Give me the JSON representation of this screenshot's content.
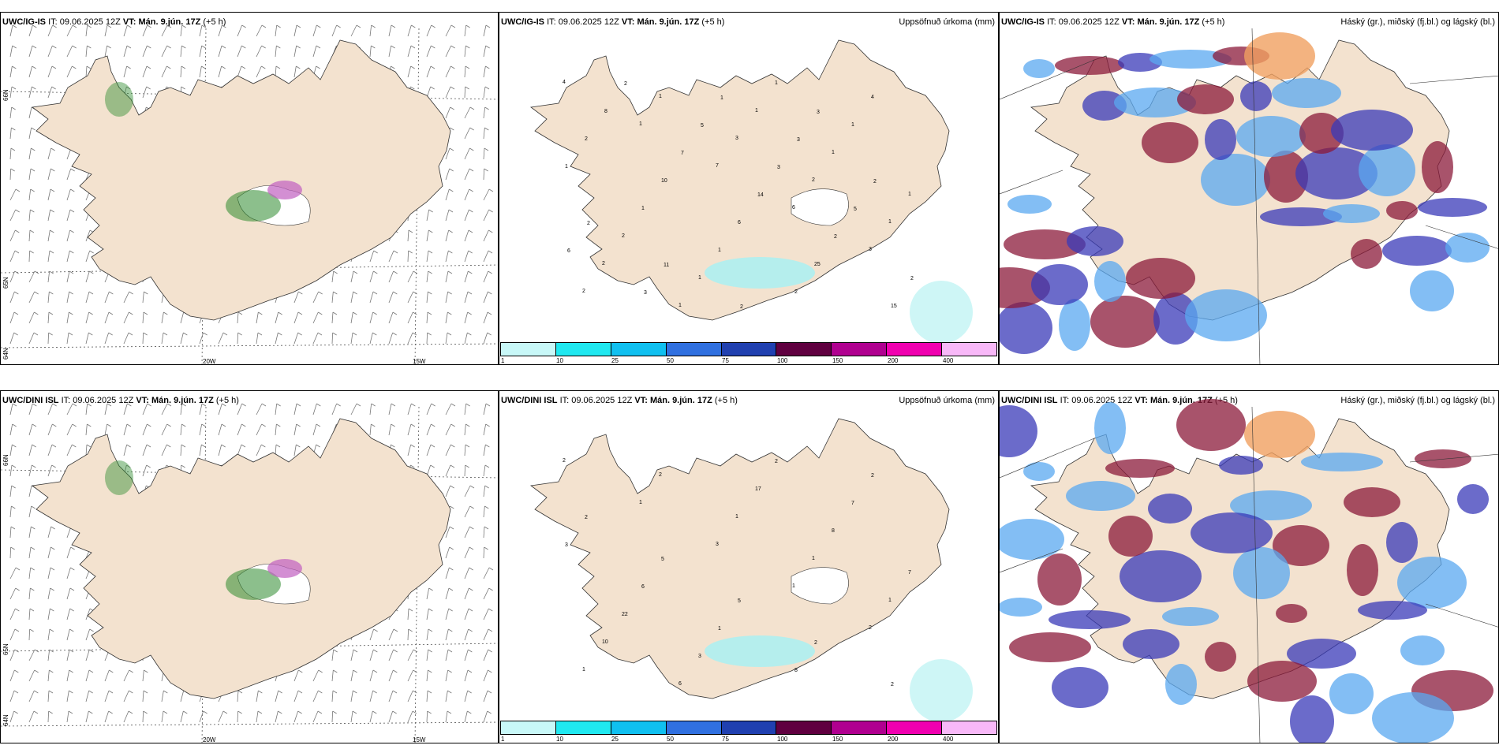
{
  "panels": {
    "ig_wind": {
      "model": "UWC/IG-IS",
      "it_label": "IT:",
      "it": "09.06.2025 12Z",
      "vt_label": "VT:",
      "vt": "Mán. 9.jún. 17Z",
      "lead": "(+5 h)"
    },
    "ig_precip": {
      "model": "UWC/IG-IS",
      "it_label": "IT:",
      "it": "09.06.2025 12Z",
      "vt_label": "VT:",
      "vt": "Mán. 9.jún. 17Z",
      "lead": "(+5 h)",
      "title": "Uppsöfnuð úrkoma (mm)"
    },
    "ig_cloud": {
      "model": "UWC/IG-IS",
      "it_label": "IT:",
      "it": "09.06.2025 12Z",
      "vt_label": "VT:",
      "vt": "Mán. 9.jún. 17Z",
      "lead": "(+5 h)",
      "title": "Háský (gr.), miðský (fj.bl.) og lágský (bl.)"
    },
    "dini_wind": {
      "model": "UWC/DINI ISL",
      "it_label": "IT:",
      "it": "09.06.2025 12Z",
      "vt_label": "VT:",
      "vt": "Mán. 9.jún. 17Z",
      "lead": "(+5 h)"
    },
    "dini_precip": {
      "model": "UWC/DINI ISL",
      "it_label": "IT:",
      "it": "09.06.2025 12Z",
      "vt_label": "VT:",
      "vt": "Mán. 9.jún. 17Z",
      "lead": "(+5 h)",
      "title": "Uppsöfnuð úrkoma (mm)"
    },
    "dini_cloud": {
      "model": "UWC/DINI ISL",
      "it_label": "IT:",
      "it": "09.06.2025 12Z",
      "vt_label": "VT:",
      "vt": "Mán. 9.jún. 17Z",
      "lead": "(+5 h)",
      "title": "Háský (gr.), miðský (fj.bl.) og lágský (bl.)"
    }
  },
  "grid_labels": {
    "lat66": "66N",
    "lat64": "64N",
    "lat65": "65N",
    "lon20": "20W",
    "lon15": "15W"
  },
  "colorbar": {
    "labels": [
      "1",
      "10",
      "25",
      "50",
      "75",
      "100",
      "150",
      "200",
      "400"
    ],
    "colors": [
      "#c8f8f8",
      "#20e8f0",
      "#10c0f0",
      "#3070e0",
      "#2040b0",
      "#600040",
      "#b00090",
      "#f000b0",
      "#f8b8f8"
    ]
  },
  "precip_values_ig": [
    "4",
    "1",
    "7",
    "6",
    "3",
    "2",
    "1",
    "3",
    "2",
    "1",
    "2",
    "1",
    "1",
    "1",
    "1",
    "2",
    "1",
    "1",
    "1",
    "1",
    "1",
    "1",
    "2",
    "4",
    "2",
    "10",
    "6",
    "25",
    "15",
    "8",
    "7",
    "14",
    "2",
    "2",
    "2",
    "5",
    "3",
    "5",
    "6",
    "3",
    "1",
    "3",
    "2",
    "2",
    "11",
    "2",
    "3"
  ],
  "precip_values_dini": [
    "2",
    "1",
    "3",
    "1",
    "2",
    "1",
    "2",
    "1",
    "1",
    "1",
    "10",
    "6",
    "17",
    "8",
    "7",
    "22",
    "3",
    "2",
    "7",
    "3",
    "6",
    "1",
    "8",
    "2",
    "2",
    "5",
    "5",
    "2",
    "2"
  ],
  "colors": {
    "land": "#f3e2cf",
    "cloud_high": "#8b1a3a",
    "cloud_mid": "#3a3ab8",
    "cloud_low": "#5aa8f0",
    "precip": "#aef0f0",
    "wind_green": "#2e8b2e"
  }
}
